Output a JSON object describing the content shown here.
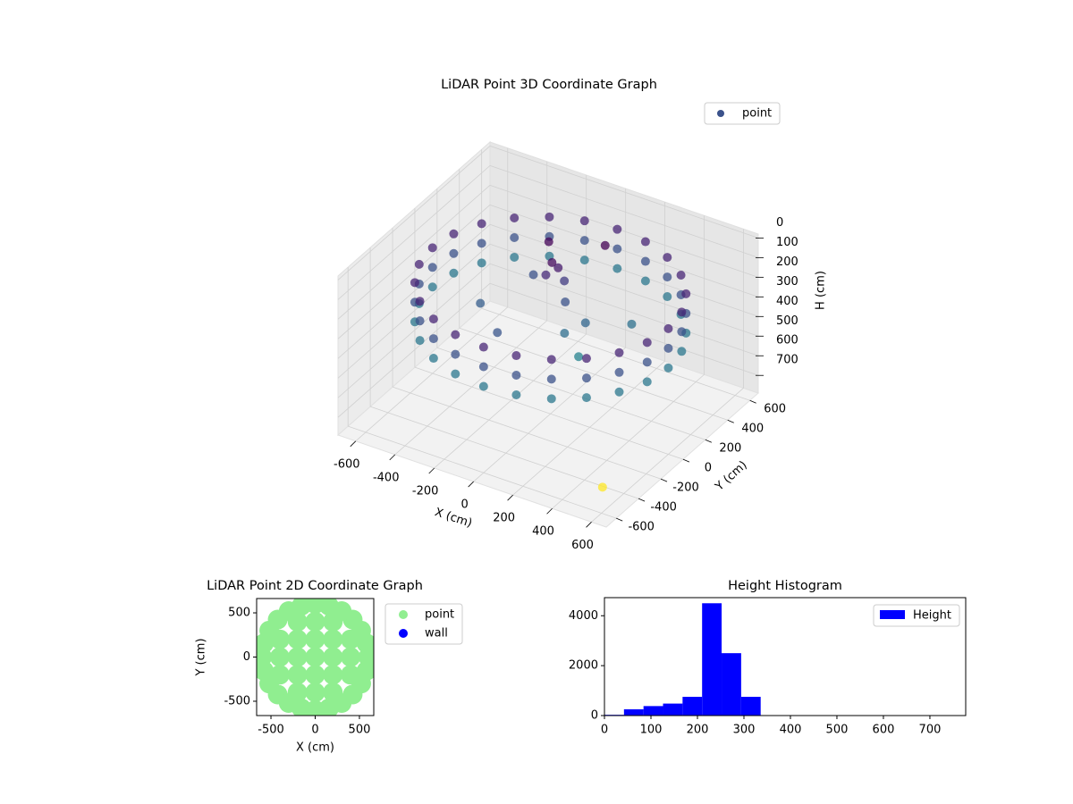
{
  "chart_data": [
    {
      "type": "scatter3d",
      "title": "LiDAR Point 3D Coordinate Graph",
      "xlabel": "X (cm)",
      "ylabel": "Y (cm)",
      "zlabel": "H (cm)",
      "xlim": [
        -690,
        675
      ],
      "ylim": [
        -690,
        675
      ],
      "zlim": [
        790,
        -20
      ],
      "xticks": [
        -600,
        -400,
        -200,
        0,
        200,
        400,
        600
      ],
      "yticks": [
        -600,
        -400,
        -200,
        0,
        200,
        400,
        600
      ],
      "zticks": [
        0,
        100,
        200,
        300,
        400,
        500,
        600,
        700
      ],
      "colormap": "viridis",
      "color_by": "z",
      "legend": "upper right",
      "grid": true,
      "series": [
        {
          "name": "point",
          "color": "#3b528b",
          "x": [
            600,
            580,
            520,
            424,
            300,
            155,
            0,
            -155,
            -300,
            -424,
            -520,
            -580,
            -600,
            -580,
            -520,
            -424,
            -300,
            -155,
            0,
            155,
            300,
            424,
            520,
            580,
            600,
            580,
            520,
            424,
            300,
            155,
            0,
            -155,
            -300,
            -424,
            -520,
            -580,
            -600,
            -580,
            -520,
            -424,
            -300,
            -155,
            0,
            155,
            300,
            424,
            520,
            580,
            600,
            580,
            520,
            424,
            300,
            155,
            0,
            -155,
            -300,
            -424,
            -520,
            -580,
            -600,
            -580,
            -520,
            -424,
            -300,
            -155,
            0,
            155,
            300,
            424,
            520,
            580,
            -60,
            -40,
            -80,
            -20,
            30,
            100,
            200,
            150,
            -300,
            -200,
            300,
            -100,
            -150,
            80,
            520
          ],
          "y": [
            0,
            155,
            300,
            424,
            520,
            580,
            600,
            580,
            520,
            424,
            300,
            155,
            0,
            -155,
            -300,
            -424,
            -520,
            -580,
            -600,
            -580,
            -520,
            -424,
            -300,
            -155,
            0,
            155,
            300,
            424,
            520,
            580,
            600,
            580,
            520,
            424,
            300,
            155,
            0,
            -155,
            -300,
            -424,
            -520,
            -580,
            -600,
            -580,
            -520,
            -424,
            -300,
            -155,
            0,
            155,
            300,
            424,
            520,
            580,
            600,
            580,
            520,
            424,
            300,
            155,
            0,
            -155,
            -300,
            -424,
            -520,
            -580,
            -600,
            -580,
            -520,
            -424,
            -300,
            -155,
            120,
            140,
            100,
            160,
            80,
            -50,
            -100,
            50,
            -100,
            200,
            200,
            -300,
            250,
            350,
            -450
          ],
          "z": [
            150,
            150,
            150,
            150,
            150,
            150,
            150,
            150,
            150,
            150,
            150,
            150,
            150,
            150,
            150,
            150,
            150,
            150,
            150,
            150,
            150,
            150,
            150,
            150,
            250,
            250,
            250,
            250,
            250,
            250,
            250,
            250,
            250,
            250,
            250,
            250,
            250,
            250,
            250,
            250,
            250,
            250,
            250,
            250,
            250,
            250,
            250,
            250,
            350,
            350,
            350,
            350,
            350,
            350,
            350,
            350,
            350,
            350,
            350,
            350,
            350,
            350,
            350,
            350,
            350,
            350,
            350,
            350,
            350,
            350,
            350,
            350,
            100,
            130,
            160,
            200,
            250,
            320,
            380,
            300,
            280,
            250,
            330,
            260,
            90,
            80,
            760
          ]
        }
      ]
    },
    {
      "type": "scatter",
      "title": "LiDAR Point 2D Coordinate Graph",
      "xlabel": "X (cm)",
      "ylabel": "Y (cm)",
      "xlim": [
        -662,
        662
      ],
      "ylim": [
        -662,
        662
      ],
      "xticks": [
        -500,
        0,
        500
      ],
      "yticks": [
        -500,
        0,
        500
      ],
      "legend": "outside right",
      "series": [
        {
          "name": "point",
          "color": "#90ee90",
          "x": [
            600,
            580,
            520,
            424,
            300,
            155,
            0,
            -155,
            -300,
            -424,
            -520,
            -580,
            -600,
            -580,
            -520,
            -424,
            -300,
            -155,
            0,
            155,
            300,
            424,
            520,
            580,
            -400,
            -400,
            -400,
            -200,
            -200,
            -200,
            -200,
            -200,
            0,
            0,
            0,
            0,
            0,
            200,
            200,
            200,
            200,
            200,
            400,
            400,
            400
          ],
          "y": [
            0,
            155,
            300,
            424,
            520,
            580,
            600,
            580,
            520,
            424,
            300,
            155,
            0,
            -155,
            -300,
            -424,
            -520,
            -580,
            -600,
            -580,
            -520,
            -424,
            -300,
            -155,
            -200,
            0,
            200,
            -400,
            -200,
            0,
            200,
            400,
            -400,
            -200,
            0,
            200,
            400,
            -400,
            -200,
            0,
            200,
            400,
            -200,
            0,
            200
          ]
        },
        {
          "name": "wall",
          "color": "#0000ff",
          "x": [],
          "y": []
        }
      ]
    },
    {
      "type": "histogram",
      "title": "Height Histogram",
      "xlim": [
        0,
        777
      ],
      "ylim": [
        0,
        4725
      ],
      "xticks": [
        0,
        100,
        200,
        300,
        400,
        500,
        600,
        700
      ],
      "yticks": [
        0,
        2000,
        4000
      ],
      "legend": "upper right",
      "series": [
        {
          "name": "Height",
          "color": "#0000ff",
          "bins": [
            0,
            42,
            84,
            126,
            168,
            210,
            252,
            294,
            336,
            378,
            420,
            462,
            504,
            546,
            588,
            630,
            672,
            714,
            756
          ],
          "values": [
            30,
            250,
            380,
            480,
            750,
            4500,
            2500,
            750,
            0,
            0,
            0,
            0,
            0,
            0,
            0,
            0,
            0,
            1
          ]
        }
      ]
    }
  ]
}
